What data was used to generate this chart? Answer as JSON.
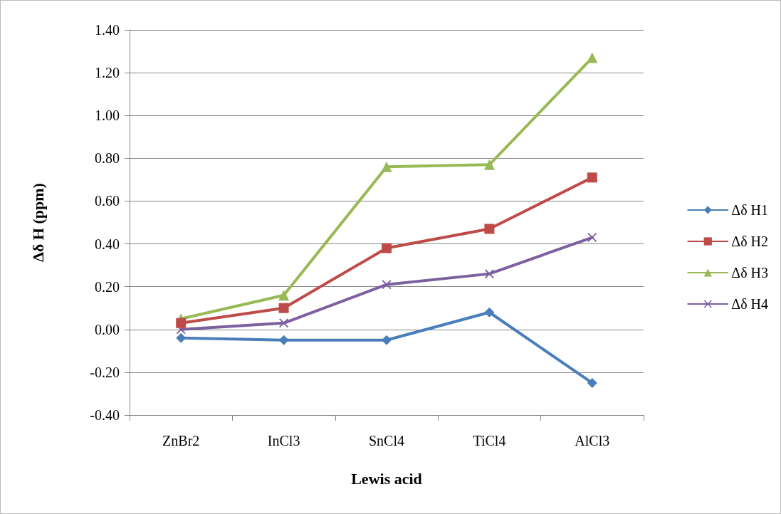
{
  "chart_data": {
    "type": "line",
    "xlabel": "Lewis acid",
    "ylabel": "Δδ H (ppm)",
    "categories": [
      "ZnBr2",
      "InCl3",
      "SnCl4",
      "TiCl4",
      "AlCl3"
    ],
    "ylim": [
      -0.4,
      1.4
    ],
    "yticks": [
      {
        "value": -0.4,
        "label": "-0.40"
      },
      {
        "value": -0.2,
        "label": "-0.20"
      },
      {
        "value": 0,
        "label": "0.00"
      },
      {
        "value": 0.2,
        "label": "0.20"
      },
      {
        "value": 0.4,
        "label": "0.40"
      },
      {
        "value": 0.6,
        "label": "0.60"
      },
      {
        "value": 0.8,
        "label": "0.80"
      },
      {
        "value": 1.0,
        "label": "1.00"
      },
      {
        "value": 1.2,
        "label": "1.20"
      },
      {
        "value": 1.4,
        "label": "1.40"
      }
    ],
    "grid": "y",
    "legend": "right",
    "line_style": "solid",
    "series": [
      {
        "name": "Δδ H1",
        "color": "#4a7ebb",
        "marker": "diamond",
        "values": [
          -0.04,
          -0.05,
          -0.05,
          0.08,
          -0.25
        ]
      },
      {
        "name": "Δδ H2",
        "color": "#be4b48",
        "marker": "square",
        "values": [
          0.03,
          0.1,
          0.38,
          0.47,
          0.71
        ]
      },
      {
        "name": "Δδ H3",
        "color": "#98b954",
        "marker": "triangle",
        "values": [
          0.05,
          0.16,
          0.76,
          0.77,
          1.27
        ]
      },
      {
        "name": "Δδ H4",
        "color": "#7d60a0",
        "marker": "cross",
        "values": [
          0.0,
          0.03,
          0.21,
          0.26,
          0.43
        ]
      }
    ]
  }
}
